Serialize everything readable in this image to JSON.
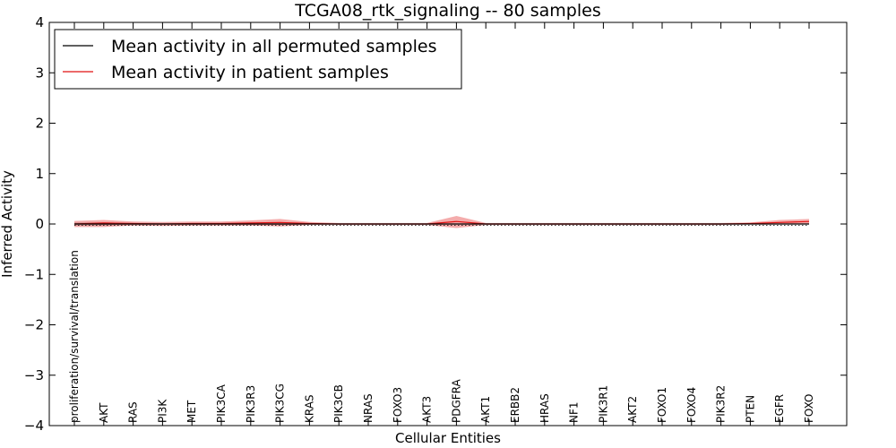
{
  "chart_data": {
    "type": "line",
    "title": "TCGA08_rtk_signaling -- 80 samples",
    "xlabel": "Cellular Entities",
    "ylabel": "Inferred Activity",
    "ylim": [
      -4,
      4
    ],
    "yticks": [
      4,
      3,
      2,
      1,
      0,
      -1,
      -2,
      -3,
      -4
    ],
    "ytick_labels": [
      "4",
      "3",
      "2",
      "1",
      "0",
      "−1",
      "−2",
      "−3",
      "−4"
    ],
    "categories": [
      "proliferation/survival/translation",
      "AKT",
      "RAS",
      "PI3K",
      "MET",
      "PIK3CA",
      "PIK3R3",
      "PIK3CG",
      "KRAS",
      "PIK3CB",
      "NRAS",
      "FOXO3",
      "AKT3",
      "PDGFRA",
      "AKT1",
      "ERBB2",
      "HRAS",
      "NF1",
      "PIK3R1",
      "AKT2",
      "FOXO1",
      "FOXO4",
      "PIK3R2",
      "PTEN",
      "EGFR",
      "FOXO"
    ],
    "legend": {
      "position": "top-left",
      "entries": [
        {
          "label": "Mean activity in all permuted samples",
          "color": "#000000"
        },
        {
          "label": "Mean activity in patient samples",
          "color": "#e01010"
        }
      ]
    },
    "series": [
      {
        "name": "Mean activity in all permuted samples",
        "color": "#000000",
        "values": [
          0,
          0,
          0,
          0,
          0,
          0,
          0,
          0,
          0,
          0,
          0,
          0,
          0,
          0,
          0,
          0,
          0,
          0,
          0,
          0,
          0,
          0,
          0,
          0,
          0,
          0
        ],
        "band_upper": [
          0.03,
          0.03,
          0.02,
          0.02,
          0.02,
          0.02,
          0.02,
          0.02,
          0.01,
          0.01,
          0.01,
          0.01,
          0.01,
          0.01,
          0.01,
          0.01,
          0.01,
          0.01,
          0.01,
          0.01,
          0.01,
          0.01,
          0.01,
          0.01,
          0.01,
          0.01
        ],
        "band_lower": [
          -0.03,
          -0.03,
          -0.02,
          -0.02,
          -0.02,
          -0.02,
          -0.02,
          -0.02,
          -0.01,
          -0.01,
          -0.01,
          -0.01,
          -0.01,
          -0.01,
          -0.01,
          -0.01,
          -0.01,
          -0.01,
          -0.01,
          -0.01,
          -0.01,
          -0.01,
          -0.01,
          -0.01,
          -0.01,
          -0.01
        ]
      },
      {
        "name": "Mean activity in patient samples",
        "color": "#e01010",
        "values": [
          0.0,
          0.02,
          0.01,
          0.0,
          0.01,
          0.01,
          0.02,
          0.03,
          0.01,
          0.0,
          0.0,
          0.0,
          0.0,
          0.05,
          0.0,
          0.0,
          0.0,
          0.0,
          0.0,
          0.0,
          0.0,
          0.0,
          0.0,
          0.01,
          0.03,
          0.05
        ],
        "band_upper": [
          0.06,
          0.08,
          0.05,
          0.04,
          0.05,
          0.05,
          0.07,
          0.1,
          0.04,
          0.02,
          0.02,
          0.02,
          0.02,
          0.16,
          0.02,
          0.02,
          0.02,
          0.02,
          0.02,
          0.02,
          0.02,
          0.02,
          0.02,
          0.03,
          0.08,
          0.1
        ],
        "band_lower": [
          -0.06,
          -0.06,
          -0.03,
          -0.04,
          -0.03,
          -0.03,
          -0.03,
          -0.05,
          -0.02,
          -0.02,
          -0.02,
          -0.02,
          -0.02,
          -0.08,
          -0.02,
          -0.02,
          -0.02,
          -0.02,
          -0.02,
          -0.02,
          -0.02,
          -0.02,
          -0.02,
          -0.01,
          -0.01,
          0.0
        ]
      }
    ]
  }
}
